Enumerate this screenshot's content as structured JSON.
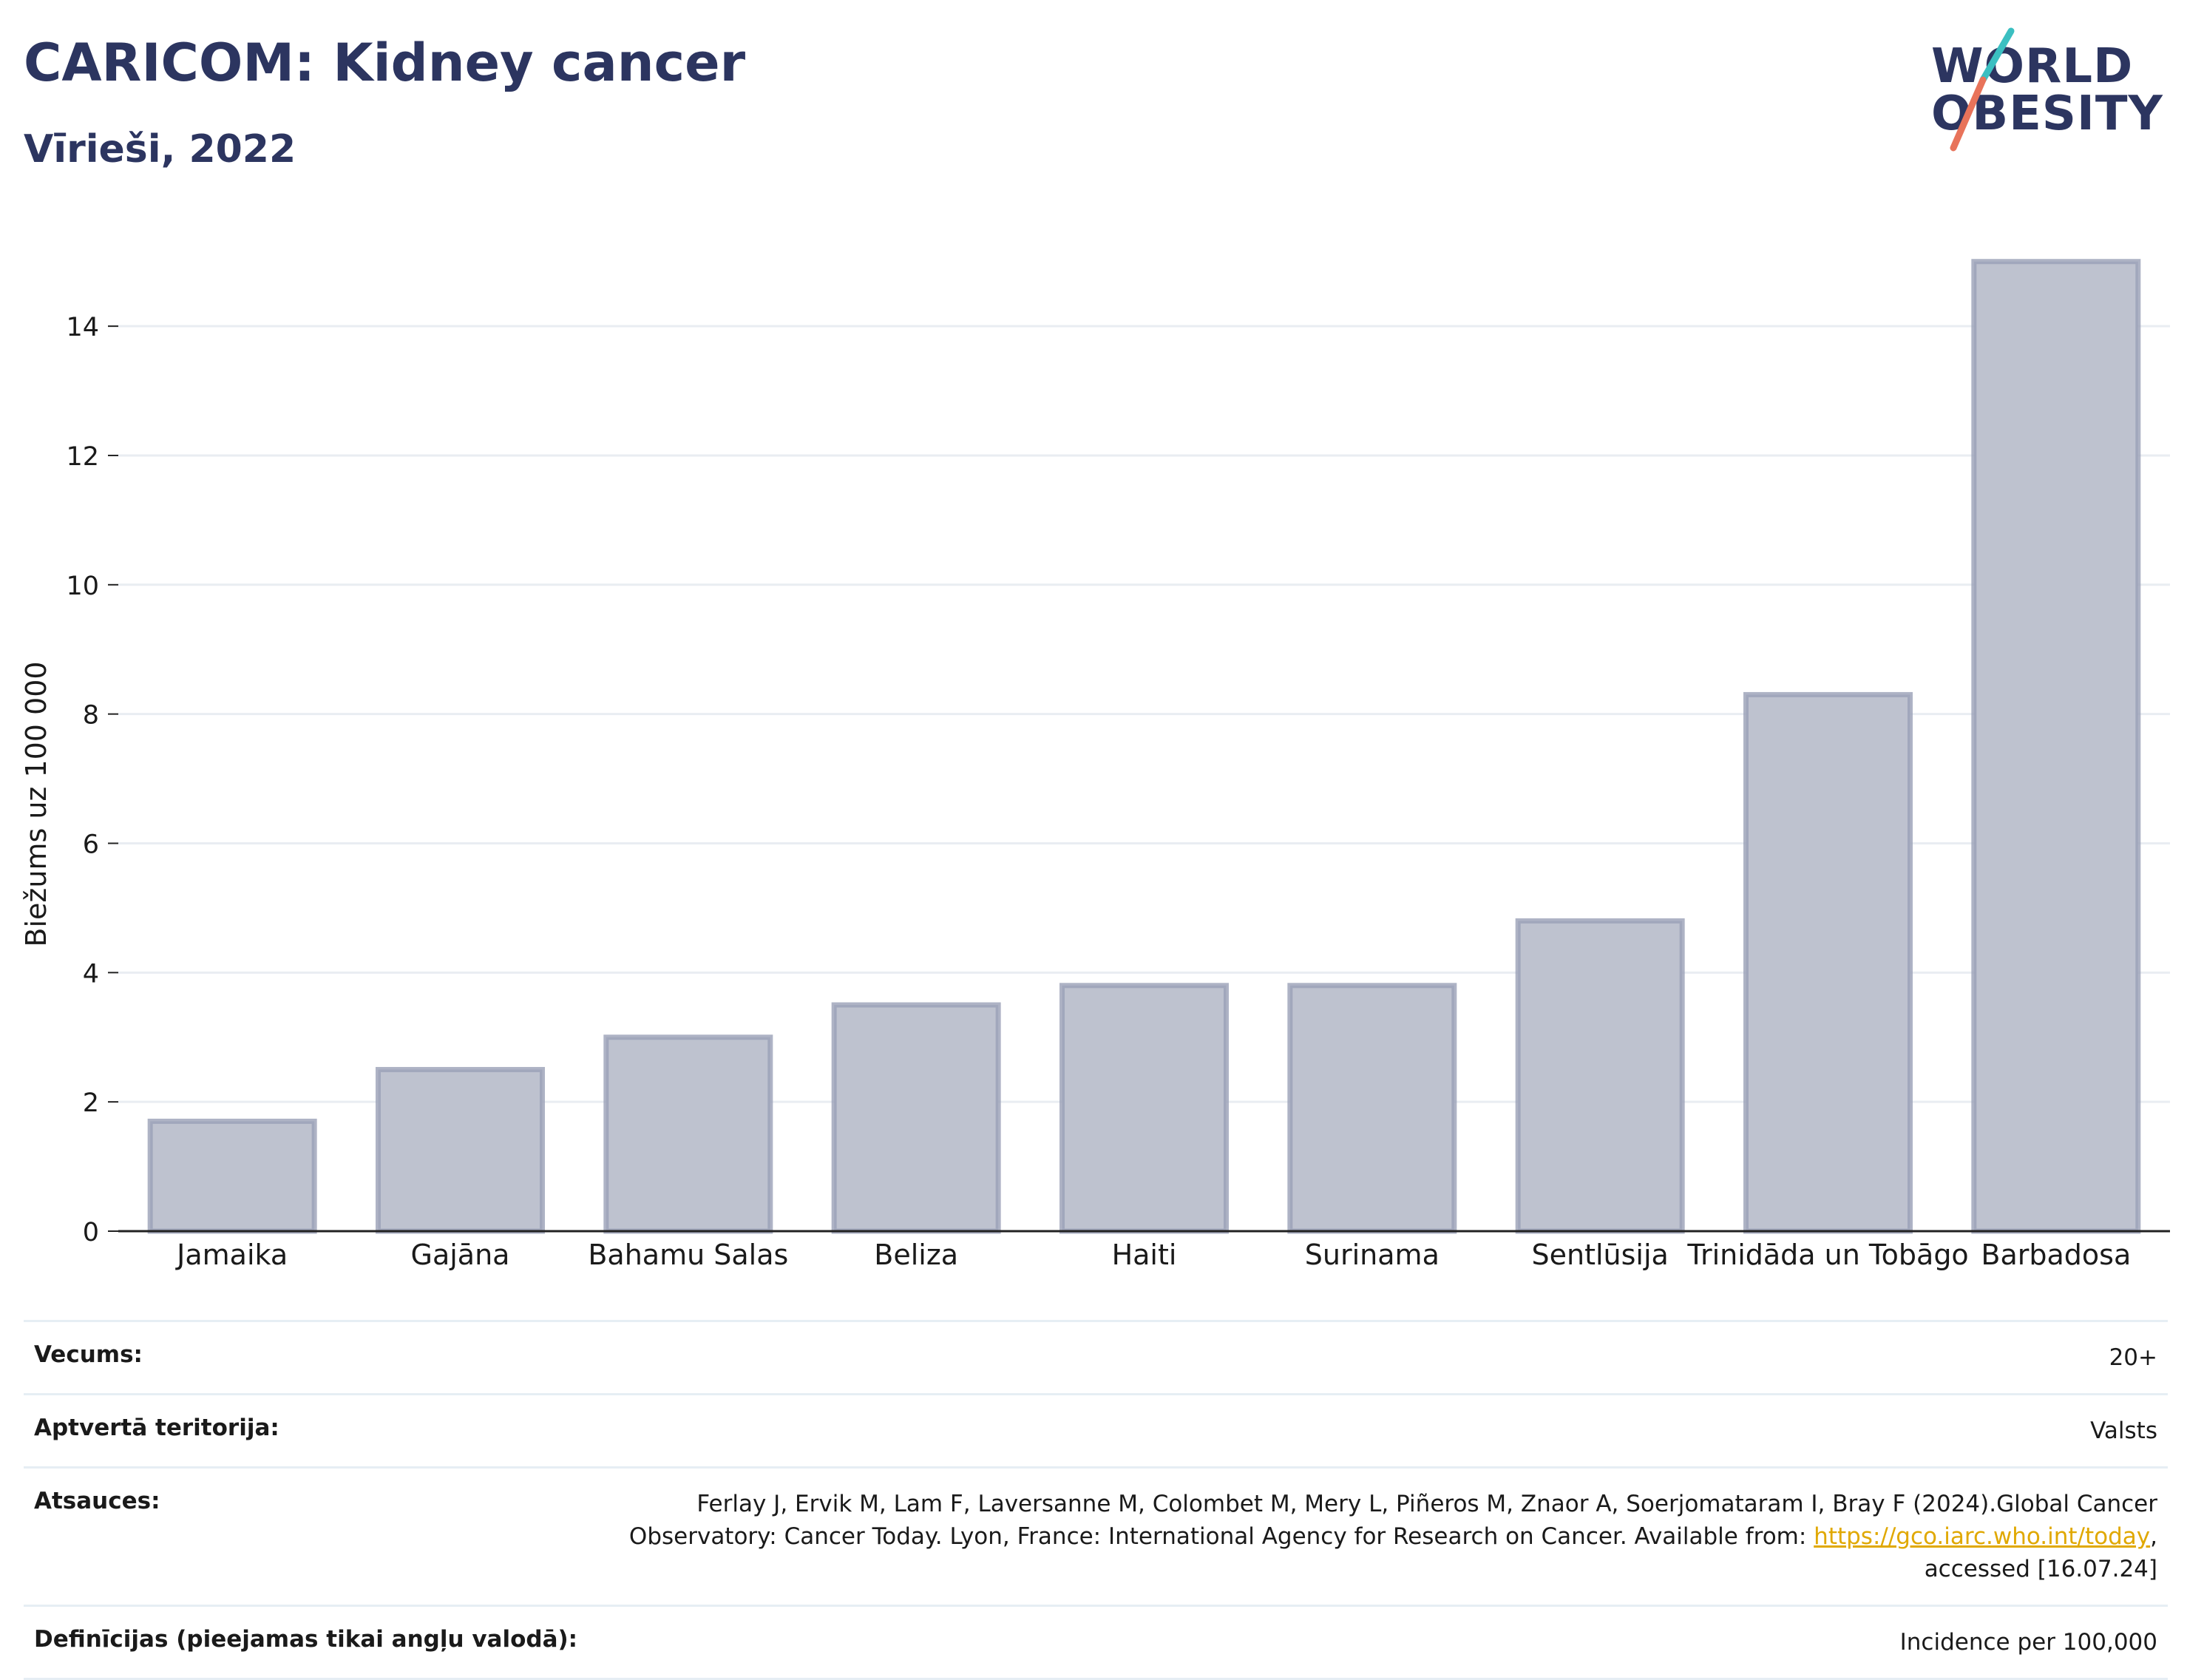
{
  "header": {
    "title": "CARICOM: Kidney cancer",
    "subtitle": "Vīrieši, 2022"
  },
  "logo": {
    "line1": "WORLD",
    "line2": "OBESITY",
    "accent_teal": "#3bbfc1",
    "accent_coral": "#e8735a"
  },
  "colors": {
    "bar_fill": "#bec2cf",
    "bar_stroke": "#9aa0b6",
    "grid": "#e9edf2",
    "axis": "#222222",
    "brand": "#2c3560"
  },
  "chart_data": {
    "type": "bar",
    "categories": [
      "Jamaika",
      "Gajāna",
      "Bahamu Salas",
      "Beliza",
      "Haiti",
      "Surinama",
      "Sentlūsija",
      "Trinidāda un Tobāgo",
      "Barbadosa"
    ],
    "values": [
      1.7,
      2.5,
      3.0,
      3.5,
      3.8,
      3.8,
      4.8,
      8.3,
      15.0
    ],
    "ylabel": "Biežums uz 100 000",
    "xlabel": "",
    "ylim": [
      0,
      15.5
    ],
    "yticks": [
      0,
      2,
      4,
      6,
      8,
      10,
      12,
      14
    ],
    "grid": true
  },
  "meta": {
    "age_label": "Vecums:",
    "age_value": "20+",
    "coverage_label": "Aptvertā teritorija:",
    "coverage_value": "Valsts",
    "refs_label": "Atsauces:",
    "refs_text": "Ferlay J, Ervik M, Lam F, Laversanne M, Colombet M, Mery L, Piñeros M, Znaor A, Soerjomataram I, Bray F (2024).Global Cancer Observatory: Cancer Today. Lyon, France: International Agency for Research on Cancer. Available from: ",
    "refs_link": "https://gco.iarc.who.int/today",
    "refs_tail": ", accessed [16.07.24]",
    "defs_label": "Definīcijas (pieejamas tikai angļu valodā):",
    "defs_value": "Incidence per 100,000"
  }
}
